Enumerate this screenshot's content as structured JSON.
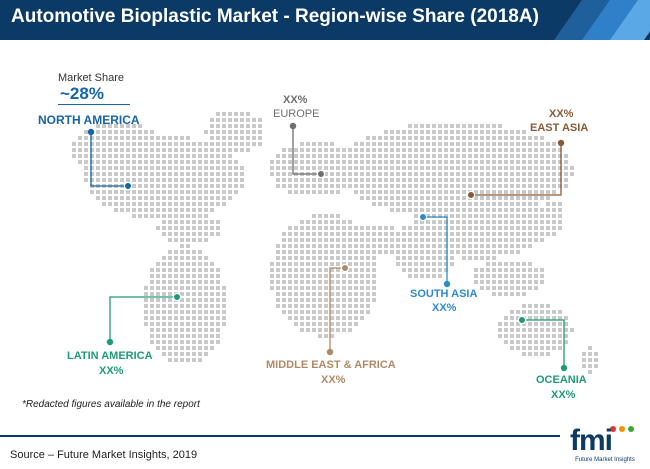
{
  "header": {
    "title": "Automotive Bioplastic Market - Region-wise Share (2018A)",
    "background": "#0b3a66",
    "stripe_colors": [
      "#1f5f9c",
      "#2f80c8",
      "#5aa9e6"
    ]
  },
  "market_share": {
    "label": "Market Share",
    "value": "~28%"
  },
  "chart_data": {
    "type": "map",
    "map_dot_color": "#c9c9c9",
    "regions": [
      {
        "name": "NORTH AMERICA",
        "value": "~28%",
        "color": "#1565a8"
      },
      {
        "name": "EUROPE",
        "value": "XX%",
        "color": "#6f6f6f"
      },
      {
        "name": "EAST ASIA",
        "value": "XX%",
        "color": "#8a5a36"
      },
      {
        "name": "SOUTH ASIA",
        "value": "XX%",
        "color": "#2e8bcb"
      },
      {
        "name": "LATIN AMERICA",
        "value": "XX%",
        "color": "#1f9a78"
      },
      {
        "name": "MIDDLE EAST & AFRICA",
        "value": "XX%",
        "color": "#b08a66"
      },
      {
        "name": "OCEANIA",
        "value": "XX%",
        "color": "#1f9a78"
      }
    ]
  },
  "footnote": "*Redacted figures available in the report",
  "source": "Source – Future Market Insights, 2019",
  "logo": {
    "mark": "fmi",
    "text": "Future Market Insights",
    "dot_colors": [
      "#e6332a",
      "#f39200",
      "#3aaa35"
    ]
  }
}
